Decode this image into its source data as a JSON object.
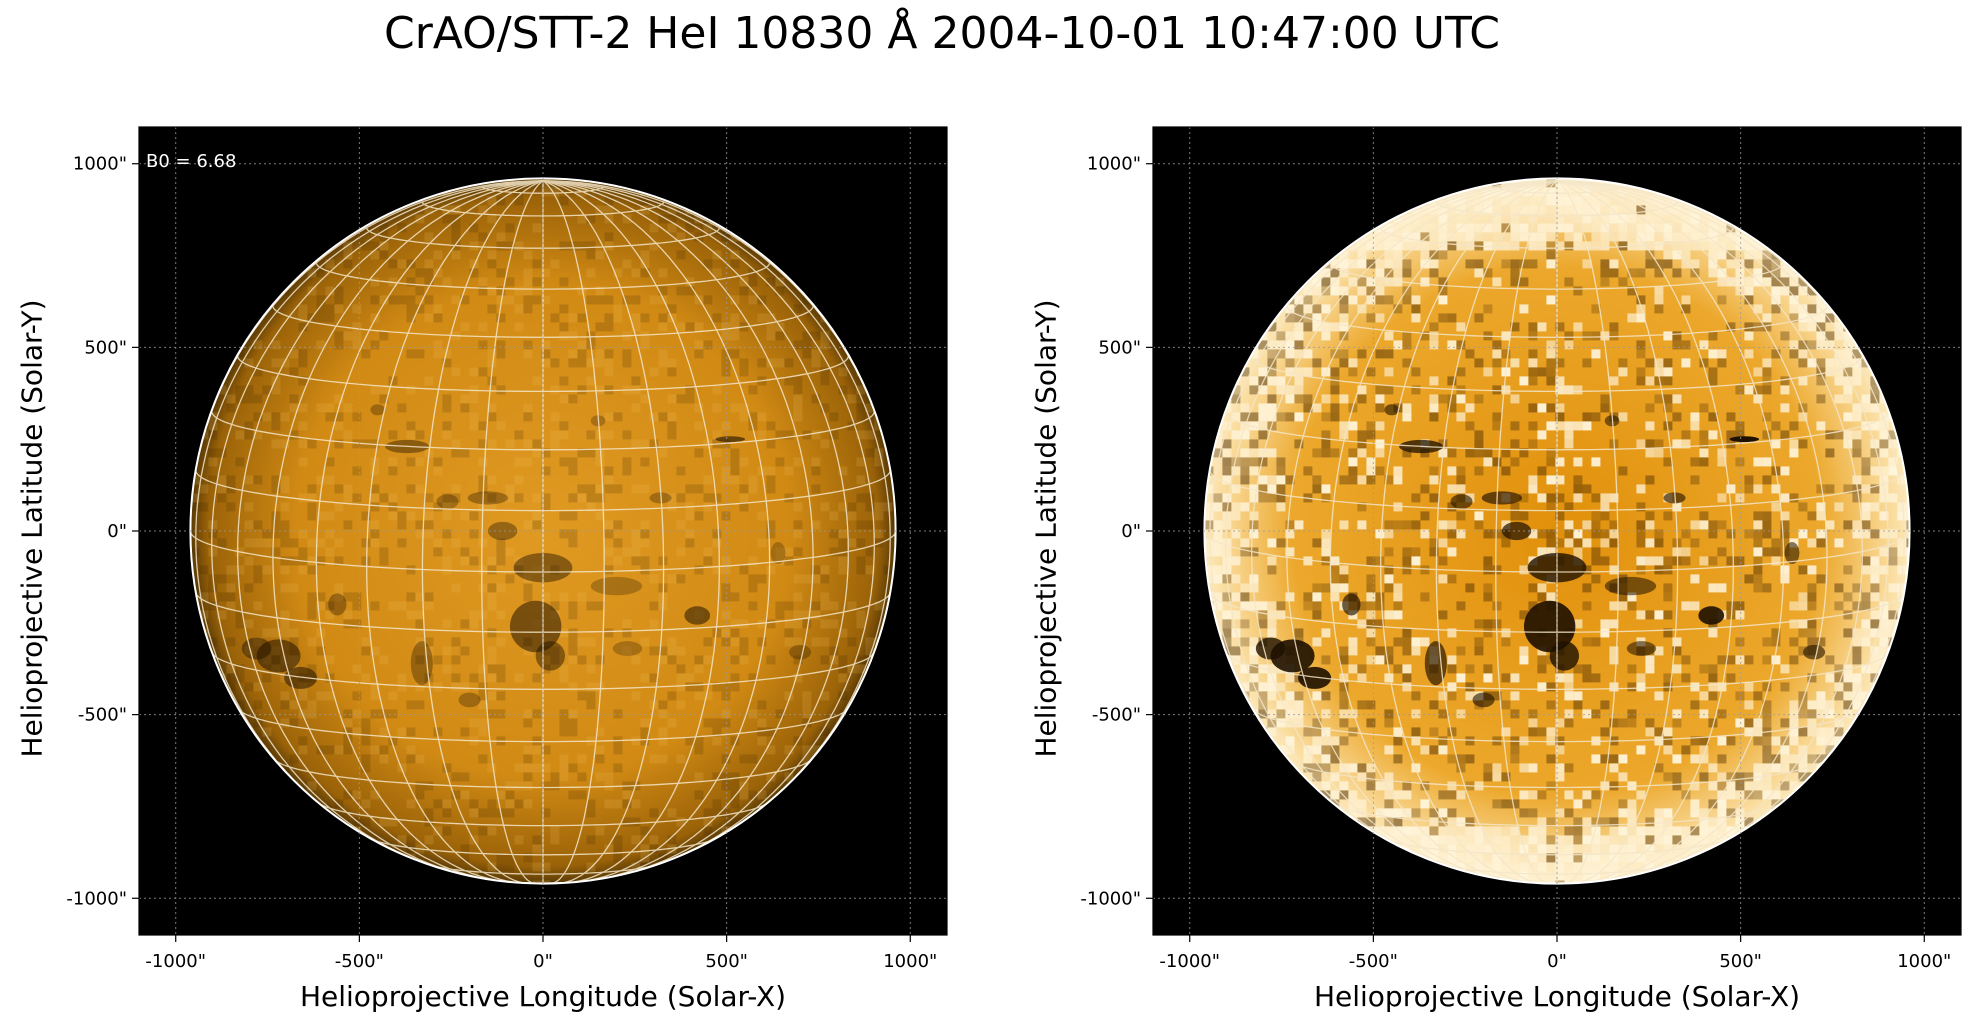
{
  "title": "CrAO/STT-2 HeI 10830 Å 2004-10-01 10:47:00 UTC",
  "colors": {
    "background": "#000000",
    "disk_base": "#d58a0e",
    "disk_bright": "#f0b44a",
    "limb": "#ffffff",
    "grid": "#f4e6c8"
  },
  "panels": [
    {
      "id": "left",
      "annotation": "B0 = 6.68",
      "xlabel": "Helioprojective Longitude (Solar-X)",
      "ylabel": "Helioprojective Latitude (Solar-Y)",
      "xticks": [
        "-1000\"",
        "-500\"",
        "0\"",
        "500\"",
        "1000\""
      ],
      "yticks": [
        "1000\"",
        "500\"",
        "0\"",
        "-500\"",
        "-1000\""
      ],
      "contrast": "normal"
    },
    {
      "id": "right",
      "annotation": "",
      "xlabel": "Helioprojective Longitude (Solar-X)",
      "ylabel": "Helioprojective Latitude (Solar-Y)",
      "xticks": [
        "-1000\"",
        "-500\"",
        "0\"",
        "500\"",
        "1000\""
      ],
      "yticks": [
        "1000\"",
        "500\"",
        "0\"",
        "-500\"",
        "-1000\""
      ],
      "contrast": "enhanced"
    }
  ],
  "axis": {
    "tick_values": [
      -1000,
      -500,
      0,
      500,
      1000
    ],
    "range_arcsec": [
      -1100,
      1100
    ],
    "solar_radius_arcsec": 960,
    "b0_deg": 6.68,
    "grid_spacing_deg": 10
  }
}
